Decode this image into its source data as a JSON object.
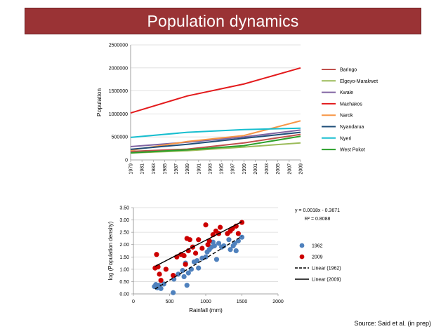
{
  "title": "Population dynamics",
  "source": "Source: Said et al. (in prep)",
  "chart_data": [
    {
      "type": "line",
      "ylabel": "Population",
      "xlabel": "",
      "ylim": [
        0,
        2500000
      ],
      "yticks": [
        0,
        500000,
        1000000,
        1500000,
        2000000,
        2500000
      ],
      "ytick_labels": [
        "0",
        "500000",
        "1000000",
        "1500000",
        "2000000",
        "2500000"
      ],
      "xticks": [
        "1979",
        "1981",
        "1983",
        "1985",
        "1987",
        "1989",
        "1991",
        "1993",
        "1995",
        "1997",
        "1999",
        "2001",
        "2003",
        "2005",
        "2007",
        "2009"
      ],
      "xlim": [
        1979,
        2009
      ],
      "series": [
        {
          "name": "Baringo",
          "color": "#c0504d",
          "x": [
            1979,
            1989,
            1999,
            2009
          ],
          "values": [
            185000,
            235000,
            370000,
            555000
          ]
        },
        {
          "name": "Elgeyo-Marakwet",
          "color": "#9bbb59",
          "x": [
            1979,
            1989,
            1999,
            2009
          ],
          "values": [
            150000,
            200000,
            280000,
            370000
          ]
        },
        {
          "name": "Kwale",
          "color": "#8064a2",
          "x": [
            1979,
            1989,
            1999,
            2009
          ],
          "values": [
            290000,
            385000,
            500000,
            650000
          ]
        },
        {
          "name": "Machakos",
          "color": "#e31a1c",
          "x": [
            1979,
            1989,
            1999,
            2009
          ],
          "values": [
            1020000,
            1390000,
            1650000,
            2000000
          ]
        },
        {
          "name": "Narok",
          "color": "#f79646",
          "x": [
            1979,
            1989,
            1999,
            2009
          ],
          "values": [
            210000,
            400000,
            530000,
            850000
          ]
        },
        {
          "name": "Nyandarua",
          "color": "#1f4e79",
          "x": [
            1979,
            1989,
            1999,
            2009
          ],
          "values": [
            230000,
            340000,
            470000,
            600000
          ]
        },
        {
          "name": "Nyeri",
          "color": "#17becf",
          "x": [
            1979,
            1989,
            1999,
            2009
          ],
          "values": [
            490000,
            600000,
            660000,
            690000
          ]
        },
        {
          "name": "West Pokot",
          "color": "#2ca02c",
          "x": [
            1979,
            1989,
            1999,
            2009
          ],
          "values": [
            155000,
            220000,
            310000,
            515000
          ]
        }
      ]
    },
    {
      "type": "scatter",
      "xlabel": "Rainfall (mm)",
      "ylabel": "log (Population density)",
      "xlim": [
        0,
        2000
      ],
      "ylim": [
        0,
        3.5
      ],
      "xticks": [
        0,
        500,
        1000,
        1500,
        2000
      ],
      "xtick_labels": [
        "0",
        "500",
        "1000",
        "1500",
        "2000"
      ],
      "yticks": [
        0,
        0.5,
        1.0,
        1.5,
        2.0,
        2.5,
        3.0,
        3.5
      ],
      "ytick_labels": [
        "0.00",
        "0.50",
        "1.00",
        "1.50",
        "2.00",
        "2.50",
        "3.00",
        "3.50"
      ],
      "equation": "y = 0.0018x - 0.3671",
      "r2": "R² = 0.8088",
      "series": [
        {
          "name": "1962",
          "color": "#4f81bd",
          "points": [
            [
              290,
              0.3
            ],
            [
              310,
              0.38
            ],
            [
              330,
              0.25
            ],
            [
              350,
              0.35
            ],
            [
              380,
              0.22
            ],
            [
              420,
              0.4
            ],
            [
              550,
              0.05
            ],
            [
              560,
              0.6
            ],
            [
              620,
              0.8
            ],
            [
              680,
              0.95
            ],
            [
              700,
              0.7
            ],
            [
              720,
              1.25
            ],
            [
              740,
              0.35
            ],
            [
              760,
              0.85
            ],
            [
              800,
              1.0
            ],
            [
              840,
              1.3
            ],
            [
              880,
              1.35
            ],
            [
              900,
              1.05
            ],
            [
              950,
              1.45
            ],
            [
              1000,
              1.5
            ],
            [
              1020,
              1.7
            ],
            [
              1050,
              1.8
            ],
            [
              1080,
              1.9
            ],
            [
              1100,
              2.1
            ],
            [
              1120,
              1.95
            ],
            [
              1150,
              1.4
            ],
            [
              1180,
              2.05
            ],
            [
              1220,
              1.9
            ],
            [
              1250,
              1.95
            ],
            [
              1320,
              2.2
            ],
            [
              1340,
              1.8
            ],
            [
              1380,
              1.95
            ],
            [
              1400,
              2.05
            ],
            [
              1420,
              1.75
            ],
            [
              1450,
              2.15
            ],
            [
              1500,
              2.3
            ]
          ]
        },
        {
          "name": "2009",
          "color": "#cc0000",
          "points": [
            [
              300,
              1.05
            ],
            [
              320,
              1.6
            ],
            [
              340,
              1.1
            ],
            [
              360,
              0.8
            ],
            [
              380,
              0.55
            ],
            [
              450,
              1.0
            ],
            [
              550,
              0.75
            ],
            [
              600,
              1.5
            ],
            [
              660,
              1.6
            ],
            [
              700,
              1.55
            ],
            [
              720,
              1.2
            ],
            [
              740,
              2.25
            ],
            [
              760,
              1.75
            ],
            [
              780,
              2.2
            ],
            [
              820,
              1.9
            ],
            [
              860,
              1.65
            ],
            [
              900,
              2.2
            ],
            [
              950,
              1.85
            ],
            [
              1000,
              2.8
            ],
            [
              1030,
              2.0
            ],
            [
              1050,
              2.15
            ],
            [
              1100,
              2.4
            ],
            [
              1140,
              2.55
            ],
            [
              1180,
              2.45
            ],
            [
              1200,
              2.7
            ],
            [
              1300,
              2.45
            ],
            [
              1340,
              2.55
            ],
            [
              1370,
              2.65
            ],
            [
              1420,
              2.75
            ],
            [
              1450,
              2.45
            ],
            [
              1500,
              2.9
            ]
          ]
        },
        {
          "name": "Linear (1962)",
          "kind": "trendline",
          "style": "dashed",
          "color": "#000000",
          "x": [
            300,
            1500
          ],
          "values": [
            0.2,
            2.34
          ]
        },
        {
          "name": "Linear (2009)",
          "kind": "trendline",
          "style": "solid",
          "color": "#000000",
          "x": [
            300,
            1500
          ],
          "values": [
            1.12,
            2.93
          ]
        }
      ]
    }
  ]
}
